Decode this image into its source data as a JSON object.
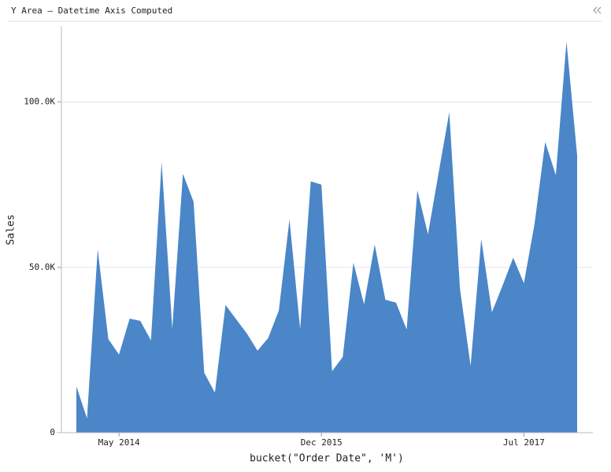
{
  "chart_data": {
    "type": "area",
    "title": "Y Area – Datetime Axis Computed",
    "x_label": "bucket(\"Order Date\", 'M')",
    "y_label": "Sales",
    "x": [
      "2014-01",
      "2014-02",
      "2014-03",
      "2014-04",
      "2014-05",
      "2014-06",
      "2014-07",
      "2014-08",
      "2014-09",
      "2014-10",
      "2014-11",
      "2014-12",
      "2015-01",
      "2015-02",
      "2015-03",
      "2015-04",
      "2015-05",
      "2015-06",
      "2015-07",
      "2015-08",
      "2015-09",
      "2015-10",
      "2015-11",
      "2015-12",
      "2016-01",
      "2016-02",
      "2016-03",
      "2016-04",
      "2016-05",
      "2016-06",
      "2016-07",
      "2016-08",
      "2016-09",
      "2016-10",
      "2016-11",
      "2016-12",
      "2017-01",
      "2017-02",
      "2017-03",
      "2017-04",
      "2017-05",
      "2017-06",
      "2017-07",
      "2017-08",
      "2017-09",
      "2017-10",
      "2017-11",
      "2017-12"
    ],
    "values": [
      14000,
      4300,
      55500,
      28300,
      23600,
      34500,
      33800,
      27900,
      81900,
      31400,
      78300,
      69800,
      18100,
      12100,
      38600,
      34300,
      30000,
      24800,
      28600,
      36900,
      64500,
      31400,
      76000,
      75000,
      18600,
      22900,
      51400,
      38800,
      56900,
      40200,
      39300,
      31200,
      73300,
      60000,
      78600,
      96900,
      43600,
      20200,
      58600,
      36400,
      44500,
      52900,
      45200,
      63100,
      87900,
      77900,
      118300,
      83800
    ],
    "color": "#4a86c8",
    "xticks": [
      {
        "value": "2014-05",
        "label": "May 2014"
      },
      {
        "value": "2015-12",
        "label": "Dec 2015"
      },
      {
        "value": "2017-07",
        "label": "Jul 2017"
      }
    ],
    "ylim": [
      0,
      123000
    ],
    "yticks": [
      0,
      {
        "value": 50000,
        "label": "50.0K"
      },
      {
        "value": 100000,
        "label": "100.0K"
      }
    ],
    "grid": true
  }
}
